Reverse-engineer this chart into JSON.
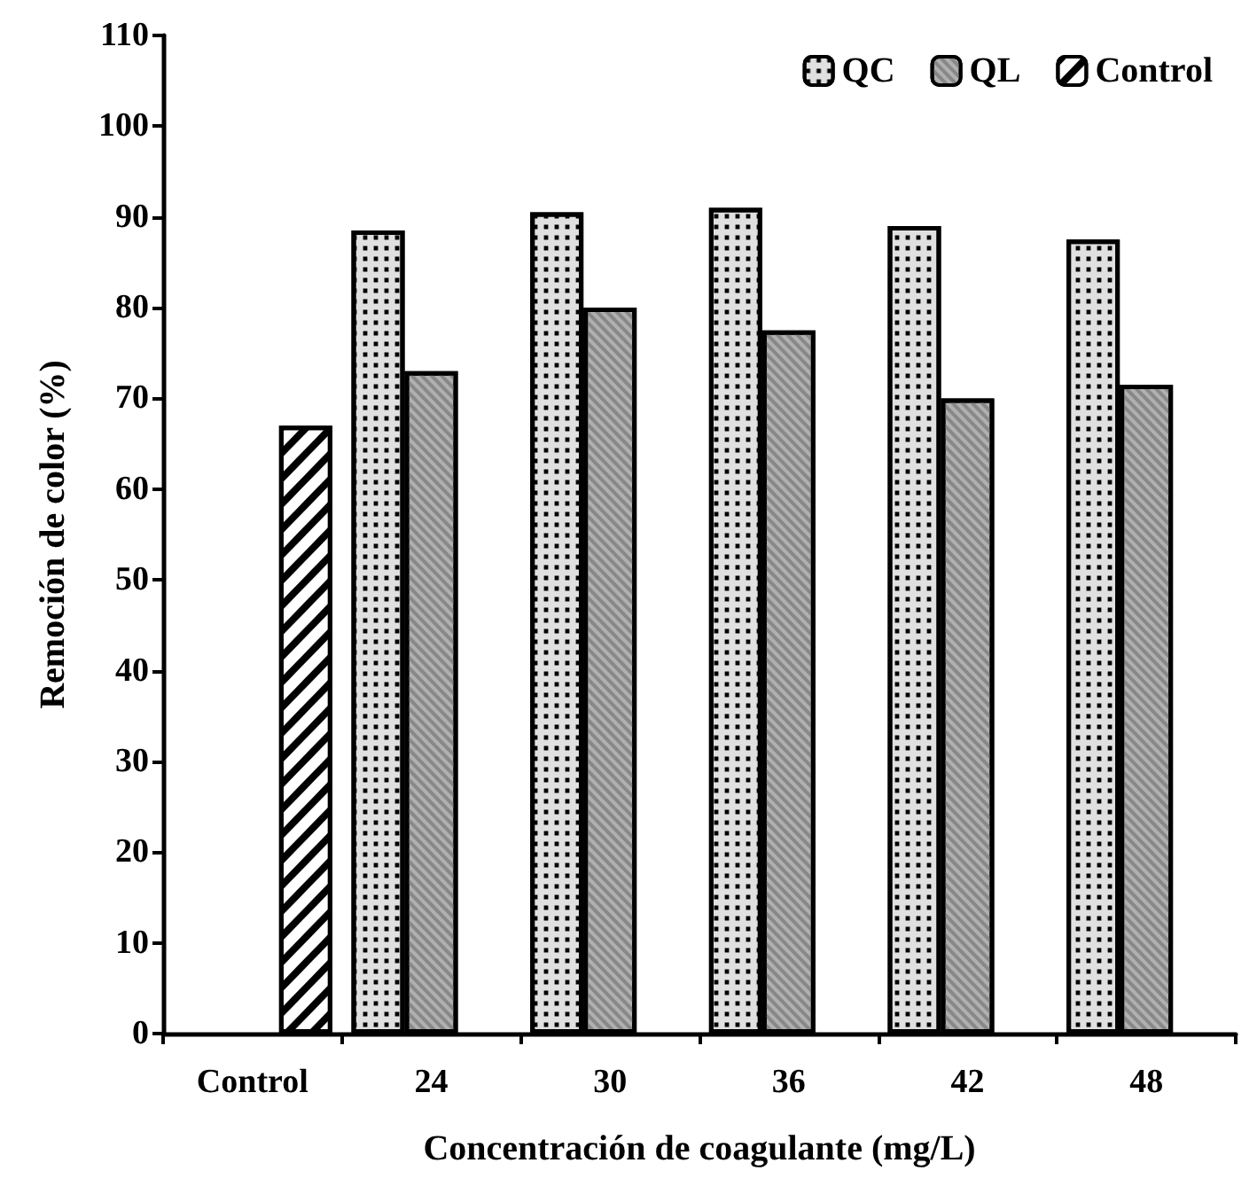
{
  "chart_data": {
    "type": "bar",
    "xlabel": "Concentración de coagulante (mg/L)",
    "ylabel": "Remoción de color (%)",
    "categories": [
      "Control",
      "24",
      "30",
      "36",
      "42",
      "48"
    ],
    "series": [
      {
        "name": "QC",
        "color": "#e0e0e0",
        "values": [
          null,
          88.5,
          90.5,
          91,
          89,
          87.5
        ]
      },
      {
        "name": "QL",
        "color": "#b0b0b0",
        "values": [
          null,
          73,
          80,
          77.5,
          70,
          71.5
        ]
      },
      {
        "name": "Control",
        "color": "#ffffff",
        "values": [
          67,
          null,
          null,
          null,
          null,
          null
        ]
      }
    ],
    "ylim": [
      0,
      110
    ],
    "yticks": [
      0,
      10,
      20,
      30,
      40,
      50,
      60,
      70,
      80,
      90,
      100,
      110
    ],
    "grid": false,
    "legend": "top right"
  }
}
